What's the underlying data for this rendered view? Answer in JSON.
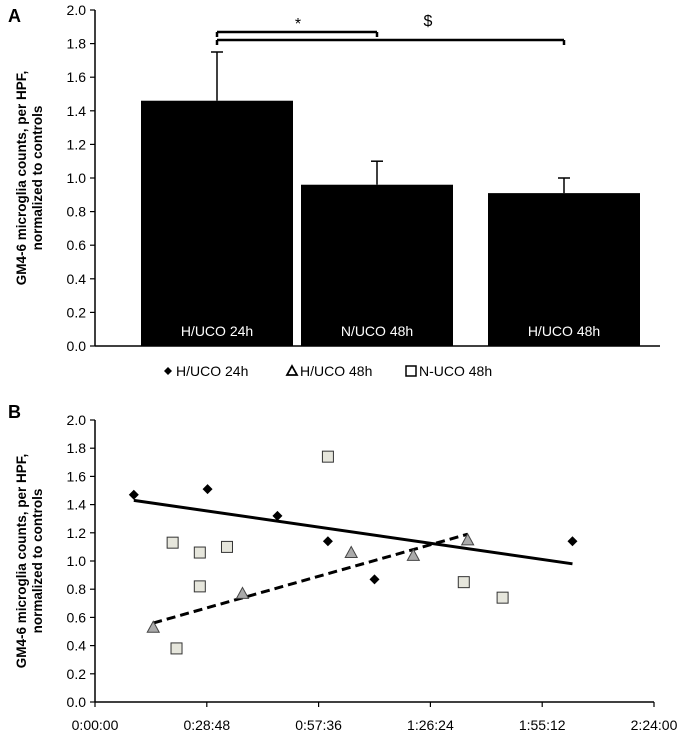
{
  "chart_data": [
    {
      "panel": "A",
      "type": "bar",
      "ylabel_lines": [
        "GM4-6 microglia counts, per HPF,",
        "normalized to controls"
      ],
      "ylim": [
        0,
        2.0
      ],
      "yticks": [
        "0.0",
        "0.2",
        "0.4",
        "0.6",
        "0.8",
        "1.0",
        "1.2",
        "1.4",
        "1.6",
        "1.8",
        "2.0"
      ],
      "categories": [
        "H/UCO 24h",
        "N/UCO 48h",
        "H/UCO 48h"
      ],
      "values": [
        1.46,
        0.96,
        0.91
      ],
      "error_upper": [
        0.29,
        0.14,
        0.09
      ],
      "significance": [
        {
          "from": 0,
          "to": 1,
          "label": "*"
        },
        {
          "from": 0,
          "to": 2,
          "label": "$"
        }
      ],
      "bar_color": "#000000",
      "grid": false
    },
    {
      "panel": "B",
      "type": "scatter",
      "ylabel_lines": [
        "GM4-6 microglia counts, per HPF,",
        "normalized to controls"
      ],
      "ylim": [
        0,
        2.0
      ],
      "yticks": [
        "0.0",
        "0.2",
        "0.4",
        "0.6",
        "0.8",
        "1.0",
        "1.2",
        "1.4",
        "1.6",
        "1.8",
        "2.0"
      ],
      "xlim": [
        "0:00:00",
        "2:24:00"
      ],
      "xticks": [
        "0:00:00",
        "0:28:48",
        "0:57:36",
        "1:26:24",
        "1:55:12",
        "2:24:00"
      ],
      "legend": [
        "H/UCO 24h",
        "H/UCO 48h",
        "N-UCO 48h"
      ],
      "legend_position": "top",
      "grid": false,
      "series": [
        {
          "name": "H/UCO 24h",
          "marker": "diamond",
          "color": "#000000",
          "points": [
            [
              "0:10:00",
              1.47
            ],
            [
              "0:29:00",
              1.51
            ],
            [
              "0:47:00",
              1.32
            ],
            [
              "1:00:00",
              1.14
            ],
            [
              "1:12:00",
              0.87
            ],
            [
              "2:03:00",
              1.14
            ]
          ],
          "trendline": {
            "style": "solid",
            "from": [
              "0:10:00",
              1.43
            ],
            "to": [
              "2:03:00",
              0.98
            ]
          }
        },
        {
          "name": "H/UCO 48h",
          "marker": "triangle",
          "color": "#aaaaaa",
          "points": [
            [
              "0:15:00",
              0.53
            ],
            [
              "0:38:00",
              0.77
            ],
            [
              "1:06:00",
              1.06
            ],
            [
              "1:22:00",
              1.04
            ],
            [
              "1:36:00",
              1.15
            ]
          ],
          "trendline": {
            "style": "dashed",
            "from": [
              "0:15:00",
              0.56
            ],
            "to": [
              "1:36:00",
              1.19
            ]
          }
        },
        {
          "name": "N-UCO 48h",
          "marker": "square",
          "color": "#e6e6dc",
          "points": [
            [
              "0:20:00",
              1.13
            ],
            [
              "0:21:00",
              0.38
            ],
            [
              "0:27:00",
              1.06
            ],
            [
              "0:27:00",
              0.82
            ],
            [
              "0:34:00",
              1.1
            ],
            [
              "1:00:00",
              1.74
            ],
            [
              "1:35:00",
              0.85
            ],
            [
              "1:45:00",
              0.74
            ]
          ]
        }
      ]
    }
  ]
}
